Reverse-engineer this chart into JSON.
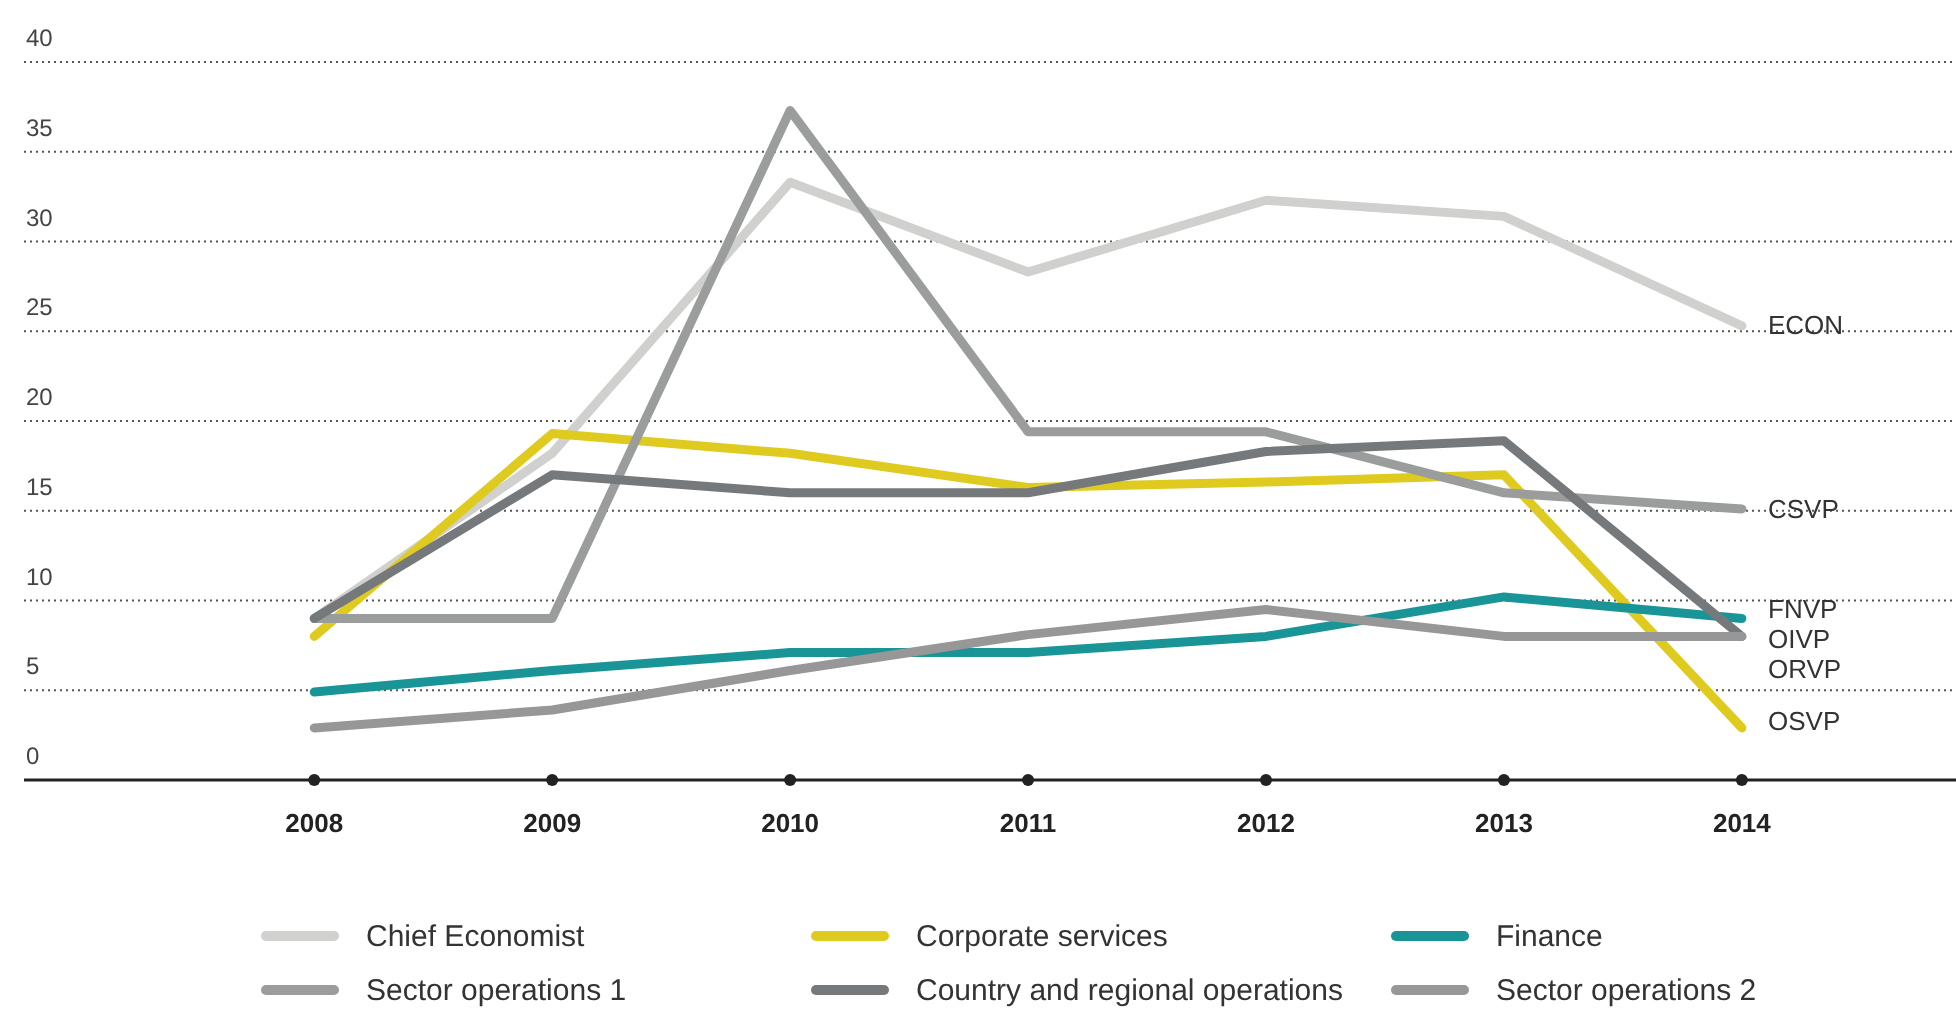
{
  "chart_data": {
    "type": "line",
    "x": [
      2008,
      2009,
      2010,
      2011,
      2012,
      2013,
      2014
    ],
    "series": [
      {
        "name": "Chief Economist",
        "color": "#d0d0ce",
        "values": [
          9,
          18.2,
          33.3,
          28.3,
          32.3,
          31.4,
          25.3
        ]
      },
      {
        "name": "Corporate services",
        "color": "#dfcb1f",
        "values": [
          8,
          19.3,
          18.2,
          16.3,
          16.6,
          17,
          2.9
        ]
      },
      {
        "name": "Finance",
        "color": "#1a9597",
        "values": [
          4.9,
          6.1,
          7.1,
          7.1,
          8,
          10.2,
          9
        ]
      },
      {
        "name": "Sector operations 1",
        "color": "#9a9d9b",
        "values": [
          9,
          9,
          37.3,
          19.4,
          19.4,
          16,
          15.1
        ]
      },
      {
        "name": "Country and regional operations",
        "color": "#76797b",
        "values": [
          9,
          17,
          16,
          16,
          18.3,
          18.9,
          8
        ]
      },
      {
        "name": "Sector operations 2",
        "color": "#979797",
        "values": [
          2.9,
          3.9,
          6.1,
          8.1,
          9.5,
          8,
          8
        ]
      }
    ],
    "xlim": [
      2006.78,
      2014.9
    ],
    "xticks": [
      2008,
      2009,
      2010,
      2011,
      2012,
      2013,
      2014
    ],
    "ylim": [
      0,
      40
    ],
    "yticks": [
      0,
      5,
      10,
      15,
      20,
      25,
      30,
      35,
      40
    ],
    "grid": "y",
    "legend": "bottom",
    "marker": "none",
    "line_style": "solid",
    "annotations": [
      "ECON",
      "CSVP",
      "FNVP",
      "OIVP",
      "ORVP",
      "OSVP"
    ]
  }
}
